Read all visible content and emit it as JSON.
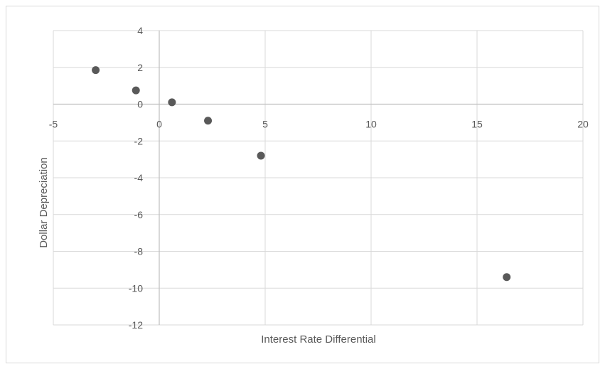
{
  "chart_data": {
    "type": "scatter",
    "title": "",
    "xlabel": "Interest Rate Differential",
    "ylabel": "Dollar Depreciation",
    "xlim": [
      -5,
      20
    ],
    "ylim": [
      -12,
      4
    ],
    "x_ticks": [
      -5,
      0,
      5,
      10,
      15,
      20
    ],
    "y_ticks": [
      4,
      2,
      0,
      -2,
      -4,
      -6,
      -8,
      -10,
      -12
    ],
    "grid": true,
    "legend": "none",
    "marker_color": "#595959",
    "points": [
      {
        "x": -3.0,
        "y": 1.85
      },
      {
        "x": -1.1,
        "y": 0.75
      },
      {
        "x": 0.6,
        "y": 0.1
      },
      {
        "x": 2.3,
        "y": -0.9
      },
      {
        "x": 4.8,
        "y": -2.8
      },
      {
        "x": 16.4,
        "y": -9.4
      }
    ]
  }
}
